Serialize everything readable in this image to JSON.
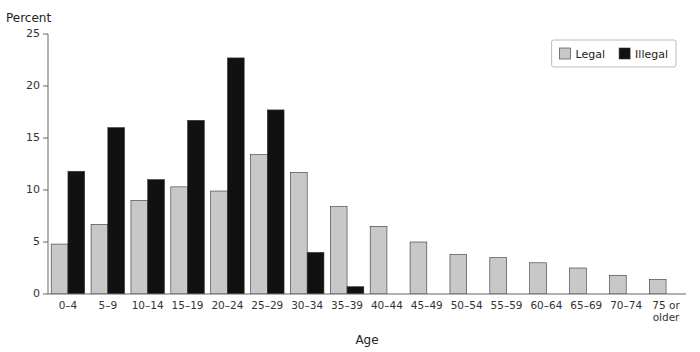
{
  "chart_data": {
    "type": "bar",
    "categories": [
      "0–4",
      "5–9",
      "10–14",
      "15–19",
      "20–24",
      "25–29",
      "30–34",
      "35–39",
      "40–44",
      "45–49",
      "50–54",
      "55–59",
      "60–64",
      "65–69",
      "70–74",
      "75 or\nolder"
    ],
    "series": [
      {
        "name": "Legal",
        "color": "#c8c8c8",
        "values": [
          4.8,
          6.7,
          9.0,
          10.3,
          9.9,
          13.4,
          11.7,
          8.4,
          6.5,
          5.0,
          3.8,
          3.5,
          3.0,
          2.5,
          1.8,
          1.4
        ]
      },
      {
        "name": "Illegal",
        "color": "#111111",
        "values": [
          11.8,
          16.0,
          11.0,
          16.7,
          22.7,
          17.7,
          4.0,
          0.7,
          0.0,
          0.0,
          0.0,
          0.0,
          0.0,
          0.0,
          0.0,
          0.0
        ]
      }
    ],
    "xlabel": "Age",
    "ylabel": "Percent",
    "ylim": [
      0,
      25
    ],
    "yticks": [
      0,
      5,
      10,
      15,
      20,
      25
    ],
    "grid": false,
    "legend": "upper right"
  }
}
